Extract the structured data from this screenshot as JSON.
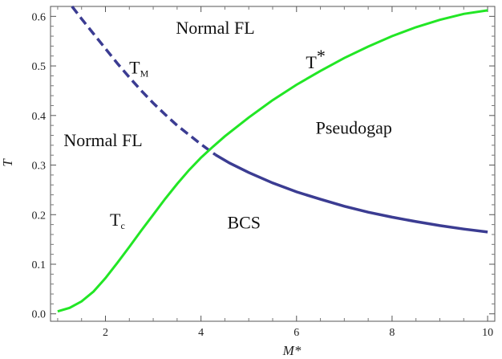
{
  "chart_data": {
    "type": "line",
    "title": "",
    "xlabel": "M*",
    "ylabel": "T",
    "xlim": [
      0.85,
      10.15
    ],
    "ylim": [
      -0.015,
      0.62
    ],
    "x_ticks": [
      2,
      4,
      6,
      8,
      10
    ],
    "y_ticks": [
      0.0,
      0.1,
      0.2,
      0.3,
      0.4,
      0.5,
      0.6
    ],
    "grid": false,
    "colors": {
      "tm": "#3b3c92",
      "tstar": "#22e625",
      "axis": "#555555"
    },
    "series": [
      {
        "key": "tm",
        "points": [
          [
            1.3,
            0.62
          ],
          [
            1.5,
            0.595
          ],
          [
            1.75,
            0.565
          ],
          [
            2.0,
            0.535
          ],
          [
            2.25,
            0.505
          ],
          [
            2.5,
            0.477
          ],
          [
            2.75,
            0.45
          ],
          [
            3.0,
            0.425
          ],
          [
            3.25,
            0.402
          ],
          [
            3.5,
            0.38
          ],
          [
            3.75,
            0.361
          ],
          [
            4.0,
            0.342
          ],
          [
            4.3,
            0.321
          ],
          [
            4.6,
            0.304
          ],
          [
            5.0,
            0.285
          ],
          [
            5.5,
            0.264
          ],
          [
            6.0,
            0.246
          ],
          [
            6.5,
            0.231
          ],
          [
            7.0,
            0.217
          ],
          [
            7.5,
            0.205
          ],
          [
            8.0,
            0.195
          ],
          [
            8.5,
            0.186
          ],
          [
            9.0,
            0.178
          ],
          [
            9.5,
            0.171
          ],
          [
            10.0,
            0.165
          ]
        ],
        "dashed_until_x": 4.3
      },
      {
        "key": "tstar",
        "points": [
          [
            1.0,
            0.005
          ],
          [
            1.25,
            0.012
          ],
          [
            1.5,
            0.025
          ],
          [
            1.75,
            0.045
          ],
          [
            2.0,
            0.072
          ],
          [
            2.25,
            0.103
          ],
          [
            2.5,
            0.135
          ],
          [
            2.75,
            0.168
          ],
          [
            3.0,
            0.2
          ],
          [
            3.25,
            0.232
          ],
          [
            3.5,
            0.262
          ],
          [
            3.75,
            0.29
          ],
          [
            4.0,
            0.315
          ],
          [
            4.25,
            0.337
          ],
          [
            4.5,
            0.358
          ],
          [
            5.0,
            0.396
          ],
          [
            5.5,
            0.431
          ],
          [
            6.0,
            0.462
          ],
          [
            6.5,
            0.49
          ],
          [
            7.0,
            0.516
          ],
          [
            7.5,
            0.539
          ],
          [
            8.0,
            0.56
          ],
          [
            8.5,
            0.578
          ],
          [
            9.0,
            0.593
          ],
          [
            9.5,
            0.605
          ],
          [
            10.0,
            0.612
          ]
        ]
      }
    ],
    "annotations": [
      {
        "key": "normal-fl-top",
        "text": "Normal FL",
        "x": 4.3,
        "y": 0.565
      },
      {
        "key": "normal-fl-left",
        "text": "Normal FL",
        "x": 1.95,
        "y": 0.338
      },
      {
        "key": "pseudogap",
        "text": "Pseudogap",
        "x": 7.2,
        "y": 0.363
      },
      {
        "key": "bcs",
        "text": "BCS",
        "x": 4.9,
        "y": 0.172
      },
      {
        "key": "tm-label",
        "main": "T",
        "sub": "M",
        "x": 2.7,
        "y": 0.485
      },
      {
        "key": "tc-label",
        "main": "T",
        "sub": "c",
        "x": 2.25,
        "y": 0.178
      },
      {
        "key": "tstar-label",
        "main": "T",
        "sup": "*",
        "x": 6.4,
        "y": 0.495
      }
    ]
  }
}
